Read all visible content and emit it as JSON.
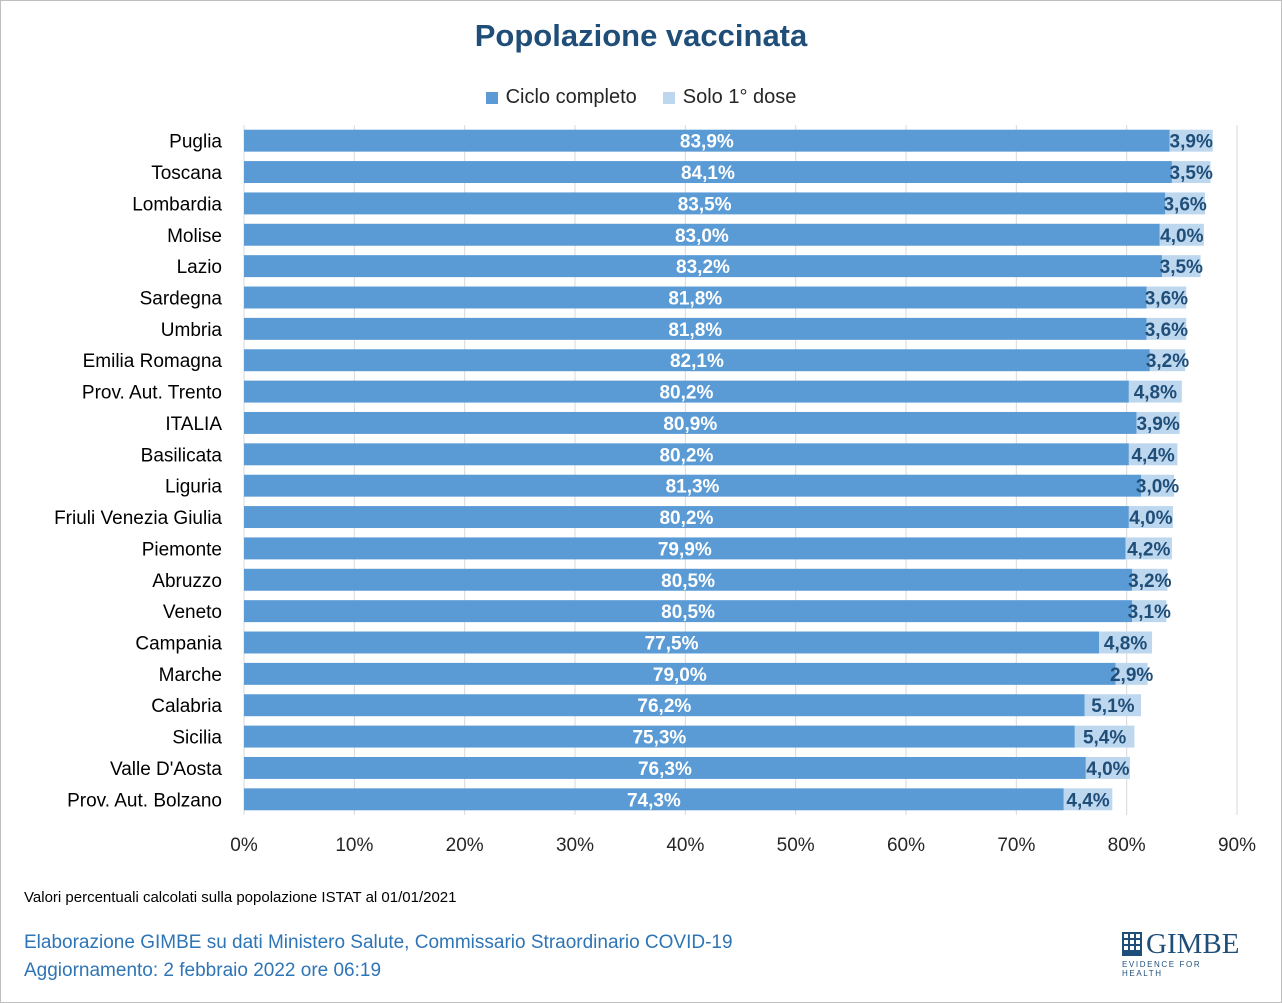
{
  "title": "Popolazione vaccinata",
  "legend": {
    "complete": "Ciclo completo",
    "first": "Solo 1° dose"
  },
  "colors": {
    "complete": "#5b9bd5",
    "first": "#bdd7ee",
    "title": "#1f4e79",
    "label_complete": "#ffffff",
    "label_first": "#1f4e79",
    "credit": "#2e75b6"
  },
  "chart_data": {
    "type": "bar",
    "orientation": "horizontal",
    "stacked": true,
    "categories": [
      "Puglia",
      "Toscana",
      "Lombardia",
      "Molise",
      "Lazio",
      "Sardegna",
      "Umbria",
      "Emilia Romagna",
      "Prov. Aut. Trento",
      "ITALIA",
      "Basilicata",
      "Liguria",
      "Friuli Venezia Giulia",
      "Piemonte",
      "Abruzzo",
      "Veneto",
      "Campania",
      "Marche",
      "Calabria",
      "Sicilia",
      "Valle D'Aosta",
      "Prov. Aut. Bolzano"
    ],
    "series": [
      {
        "name": "Ciclo completo",
        "values": [
          83.9,
          84.1,
          83.5,
          83.0,
          83.2,
          81.8,
          81.8,
          82.1,
          80.2,
          80.9,
          80.2,
          81.3,
          80.2,
          79.9,
          80.5,
          80.5,
          77.5,
          79.0,
          76.2,
          75.3,
          76.3,
          74.3
        ],
        "labels": [
          "83,9%",
          "84,1%",
          "83,5%",
          "83,0%",
          "83,2%",
          "81,8%",
          "81,8%",
          "82,1%",
          "80,2%",
          "80,9%",
          "80,2%",
          "81,3%",
          "80,2%",
          "79,9%",
          "80,5%",
          "80,5%",
          "77,5%",
          "79,0%",
          "76,2%",
          "75,3%",
          "76,3%",
          "74,3%"
        ]
      },
      {
        "name": "Solo 1° dose",
        "values": [
          3.9,
          3.5,
          3.6,
          4.0,
          3.5,
          3.6,
          3.6,
          3.2,
          4.8,
          3.9,
          4.4,
          3.0,
          4.0,
          4.2,
          3.2,
          3.1,
          4.8,
          2.9,
          5.1,
          5.4,
          4.0,
          4.4
        ],
        "labels": [
          "3,9%",
          "3,5%",
          "3,6%",
          "4,0%",
          "3,5%",
          "3,6%",
          "3,6%",
          "3,2%",
          "4,8%",
          "3,9%",
          "4,4%",
          "3,0%",
          "4,0%",
          "4,2%",
          "3,2%",
          "3,1%",
          "4,8%",
          "2,9%",
          "5,1%",
          "5,4%",
          "4,0%",
          "4,4%"
        ]
      }
    ],
    "xlim": [
      0,
      90
    ],
    "xticks": [
      0,
      10,
      20,
      30,
      40,
      50,
      60,
      70,
      80,
      90
    ],
    "xtick_labels": [
      "0%",
      "10%",
      "20%",
      "30%",
      "40%",
      "50%",
      "60%",
      "70%",
      "80%",
      "90%"
    ],
    "grid": "vertical",
    "legend_position": "top"
  },
  "footer": {
    "note": "Valori percentuali calcolati sulla popolazione ISTAT al 01/01/2021",
    "credit_line1": "Elaborazione GIMBE su dati Ministero Salute, Commissario Straordinario COVID-19",
    "credit_line2": "Aggiornamento: 2 febbraio 2022 ore 06:19"
  },
  "logo": {
    "word": "GIMBE",
    "tagline": "EVIDENCE FOR HEALTH"
  }
}
